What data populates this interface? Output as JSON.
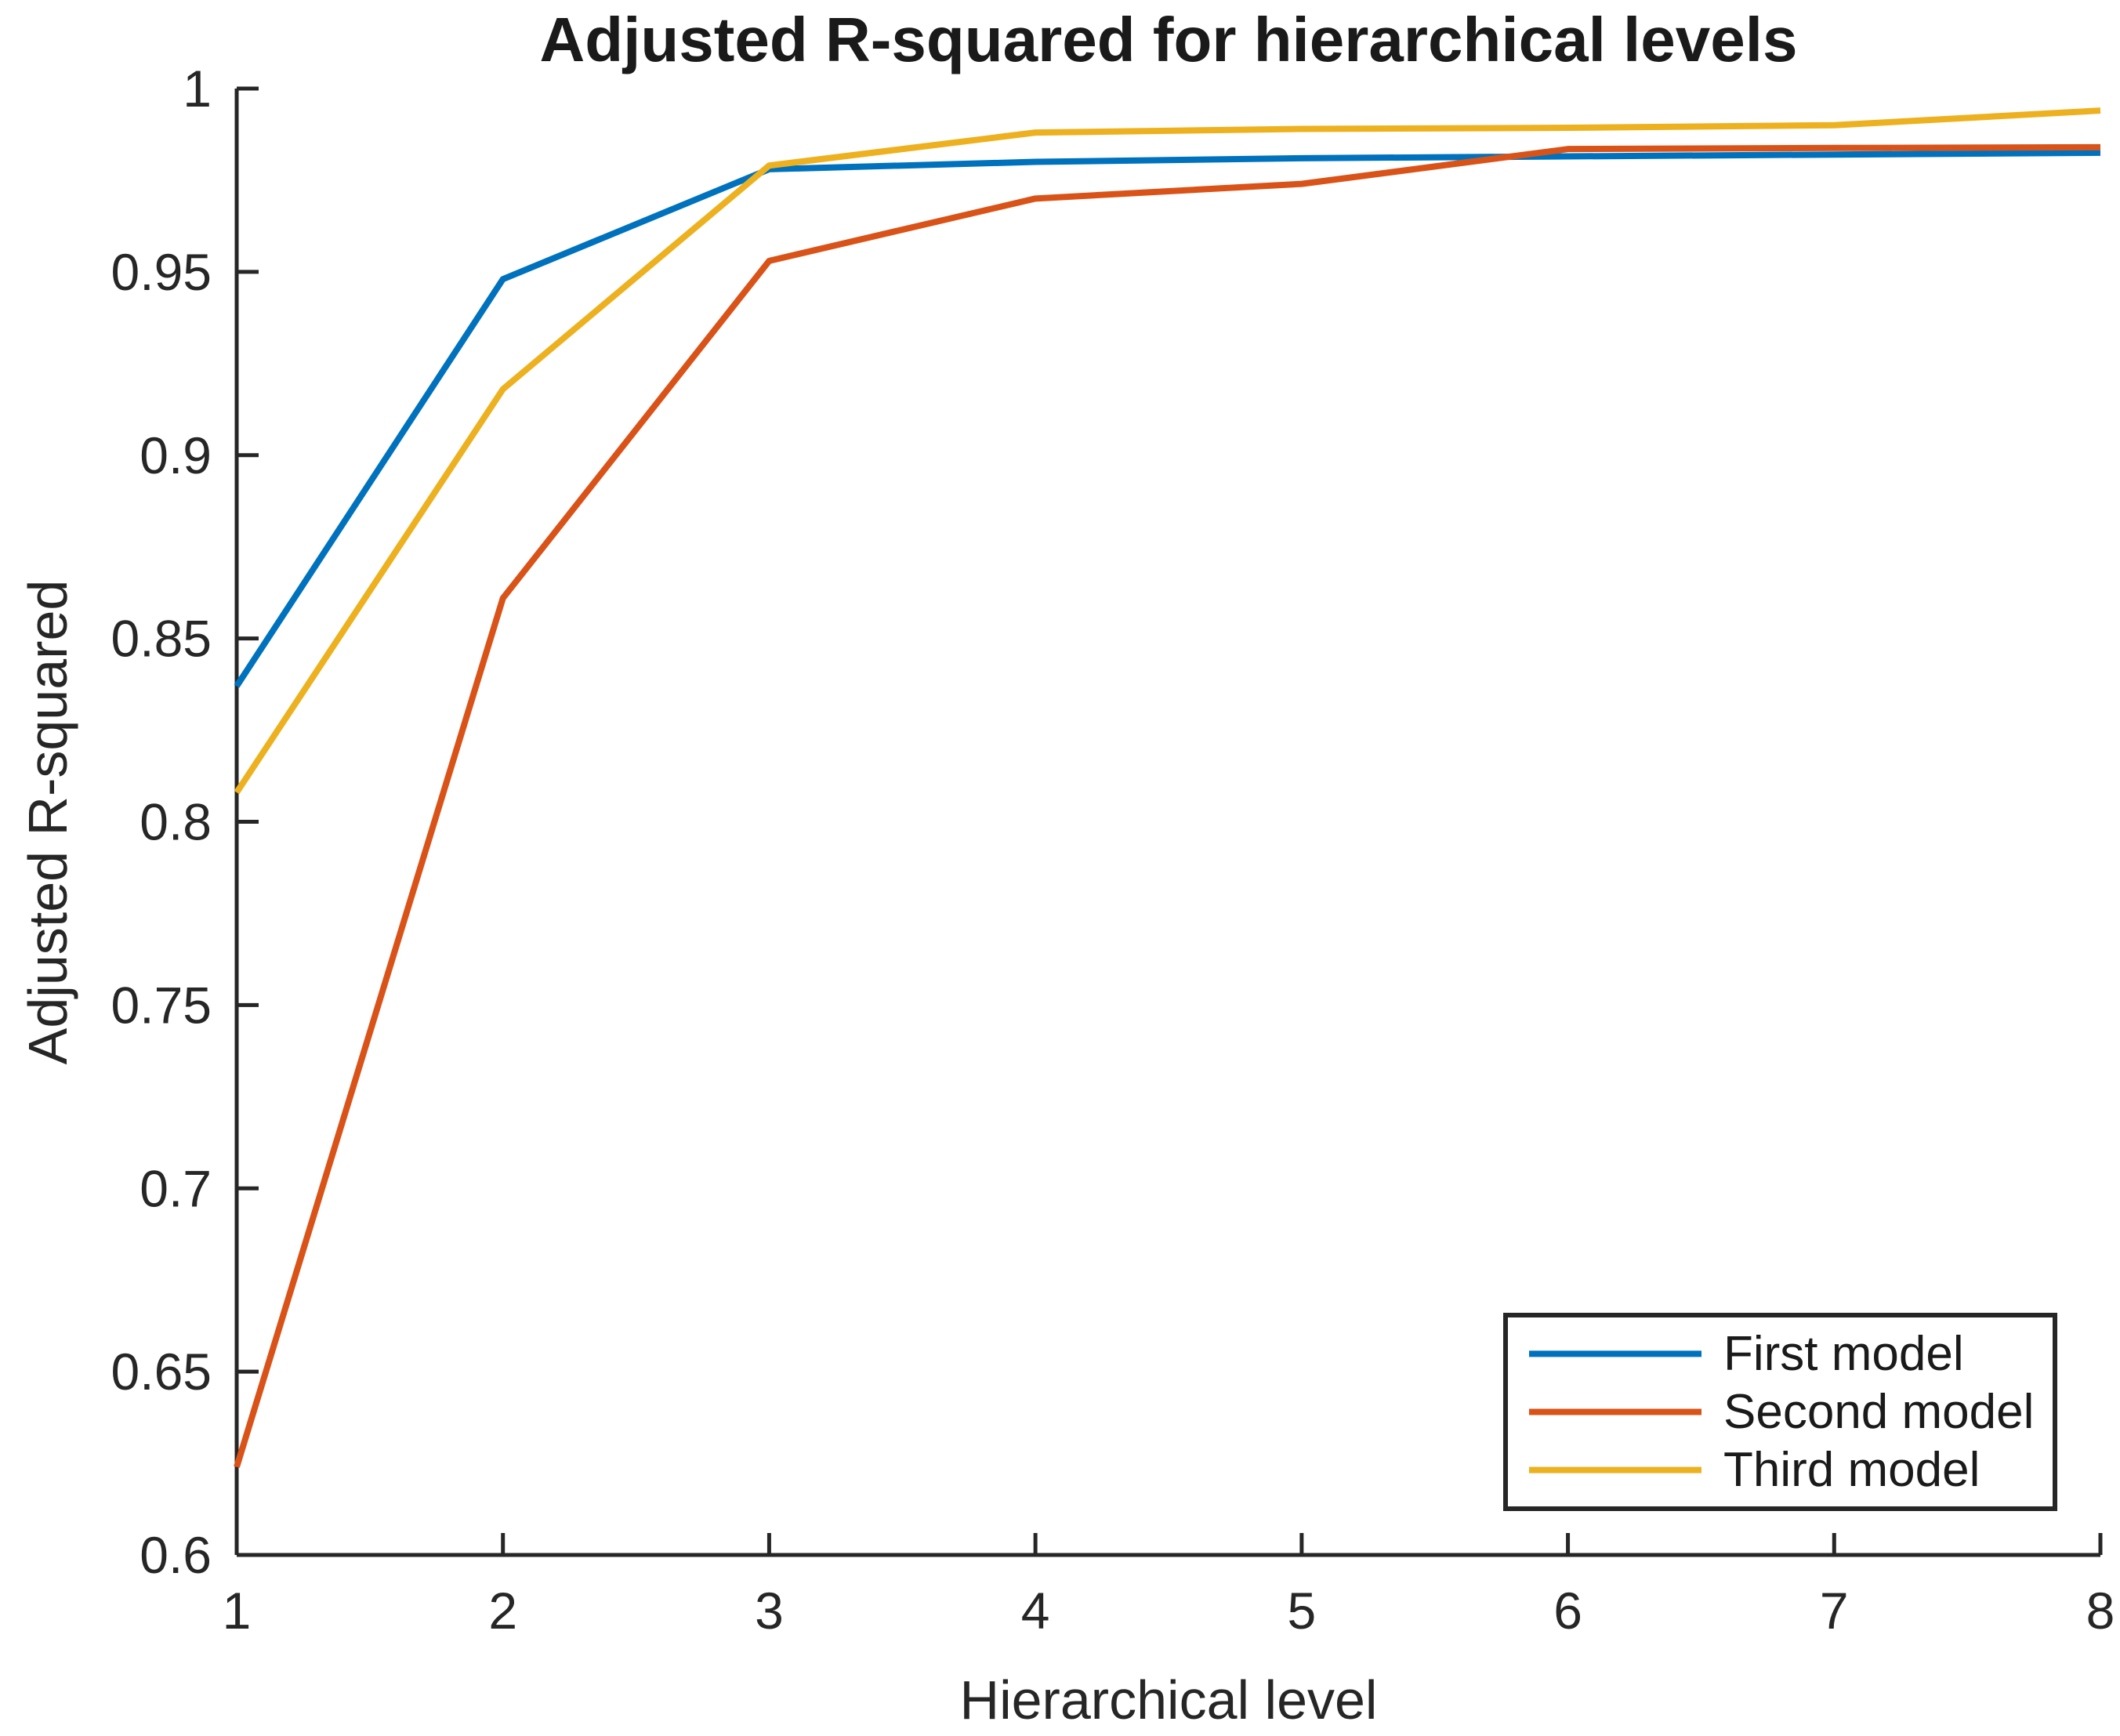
{
  "figure": {
    "background": "#ffffff",
    "axis_color": "#262626",
    "text_color": "#1a1a1a"
  },
  "chart_data": {
    "type": "line",
    "title": "Adjusted R-squared for hierarchical levels",
    "xlabel": "Hierarchical level",
    "ylabel": "Adjusted R-squared",
    "xlim": [
      1,
      8
    ],
    "ylim": [
      0.6,
      1.0
    ],
    "grid": false,
    "legend_position": "southeast",
    "x": [
      1,
      2,
      3,
      4,
      5,
      6,
      7,
      8
    ],
    "series": [
      {
        "name": "First model",
        "color": "#0072BD",
        "values": [
          0.837,
          0.948,
          0.978,
          0.98,
          0.981,
          0.9815,
          0.982,
          0.9825
        ]
      },
      {
        "name": "Second model",
        "color": "#D95319",
        "values": [
          0.624,
          0.861,
          0.953,
          0.97,
          0.974,
          0.9835,
          0.9838,
          0.984
        ]
      },
      {
        "name": "Third model",
        "color": "#EDB120",
        "values": [
          0.808,
          0.918,
          0.979,
          0.988,
          0.989,
          0.9893,
          0.99,
          0.994
        ]
      }
    ],
    "xticks": [
      1,
      2,
      3,
      4,
      5,
      6,
      7,
      8
    ],
    "xtick_labels": [
      "1",
      "2",
      "3",
      "4",
      "5",
      "6",
      "7",
      "8"
    ],
    "yticks": [
      0.6,
      0.65,
      0.7,
      0.75,
      0.8,
      0.85,
      0.9,
      0.95,
      1.0
    ],
    "ytick_labels": [
      "0.6",
      "0.65",
      "0.7",
      "0.75",
      "0.8",
      "0.85",
      "0.9",
      "0.95",
      "1"
    ]
  }
}
